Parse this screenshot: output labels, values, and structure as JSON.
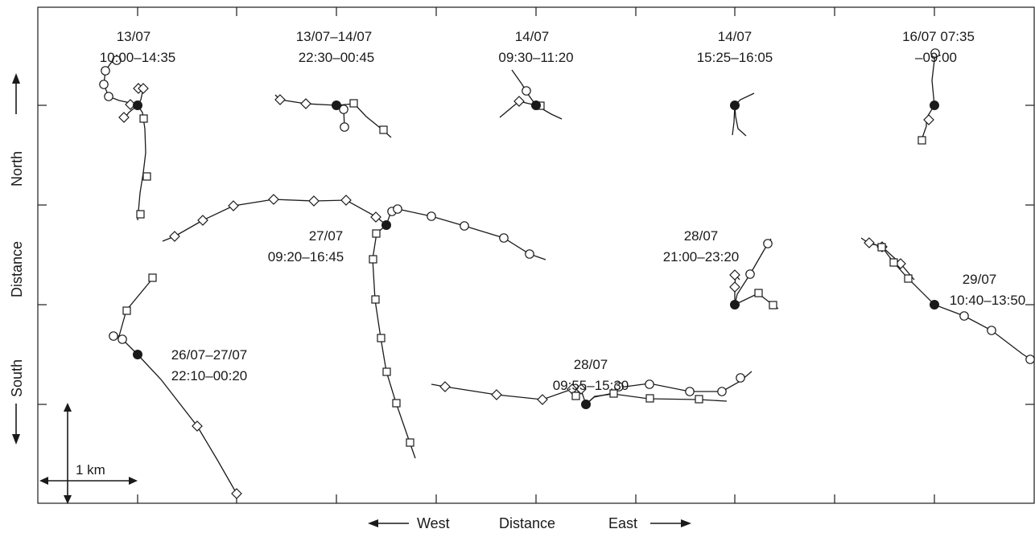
{
  "axes": {
    "x_title_parts": [
      "West",
      "Distance",
      "East"
    ],
    "y_title_parts": [
      "South",
      "Distance",
      "North"
    ]
  },
  "scale_bar": {
    "label": "1 km"
  },
  "legend_markers": [
    "filled-circle-start",
    "open-circle",
    "open-diamond",
    "open-square"
  ],
  "colors": {
    "ink": "#1a1a1a",
    "background": "#ffffff"
  },
  "tracks": [
    {
      "id": "t1",
      "date": "13/07",
      "time": "10:00–14:35"
    },
    {
      "id": "t2",
      "date": "13/07–14/07",
      "time": "22:30–00:45"
    },
    {
      "id": "t3",
      "date": "14/07",
      "time": "09:30–11:20"
    },
    {
      "id": "t4",
      "date": "14/07",
      "time": "15:25–16:05"
    },
    {
      "id": "t5",
      "date": "16/07 07:35",
      "time": "–09:00"
    },
    {
      "id": "t6",
      "date": "27/07",
      "time": "09:20–16:45"
    },
    {
      "id": "t7",
      "date": "28/07",
      "time": "21:00–23:20"
    },
    {
      "id": "t8",
      "date": "29/07",
      "time": "10:40–13:50"
    },
    {
      "id": "t9",
      "date": "26/07–27/07",
      "time": "22:10–00:20"
    },
    {
      "id": "t10",
      "date": "28/07",
      "time": "09:55–15:30"
    }
  ]
}
